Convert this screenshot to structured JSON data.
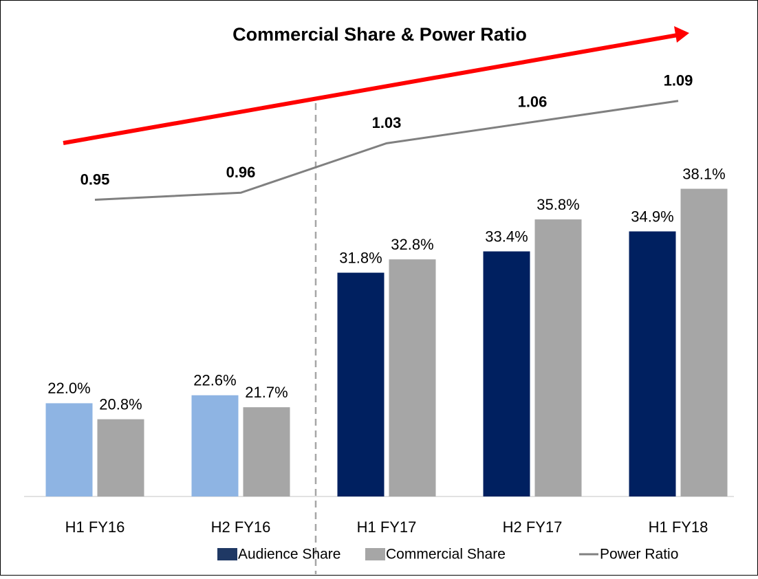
{
  "chart_data": {
    "type": "bar",
    "title": "Commercial Share & Power Ratio",
    "categories": [
      "H1 FY16",
      "H2 FY16",
      "H1 FY17",
      "H2 FY17",
      "H1 FY18"
    ],
    "series": [
      {
        "name": "Audience Share",
        "color": "#1f3864",
        "point_colors": [
          "#8eb4e3",
          "#8eb4e3",
          "#002060",
          "#002060",
          "#002060"
        ],
        "values": [
          22.0,
          22.6,
          31.8,
          33.4,
          34.9
        ],
        "value_labels": [
          "22.0%",
          "22.6%",
          "31.8%",
          "33.4%",
          "34.9%"
        ]
      },
      {
        "name": "Commercial Share",
        "color": "#a6a6a6",
        "values": [
          20.8,
          21.7,
          32.8,
          35.8,
          38.1
        ],
        "value_labels": [
          "20.8%",
          "21.7%",
          "32.8%",
          "35.8%",
          "38.1%"
        ]
      },
      {
        "name": "Power Ratio",
        "color": "#808080",
        "type": "line",
        "axis": "y2",
        "values": [
          0.95,
          0.96,
          1.03,
          1.06,
          1.09
        ]
      }
    ],
    "ylim": [
      15,
      50
    ],
    "y2lim": [
      0.53,
      1.19
    ]
  }
}
